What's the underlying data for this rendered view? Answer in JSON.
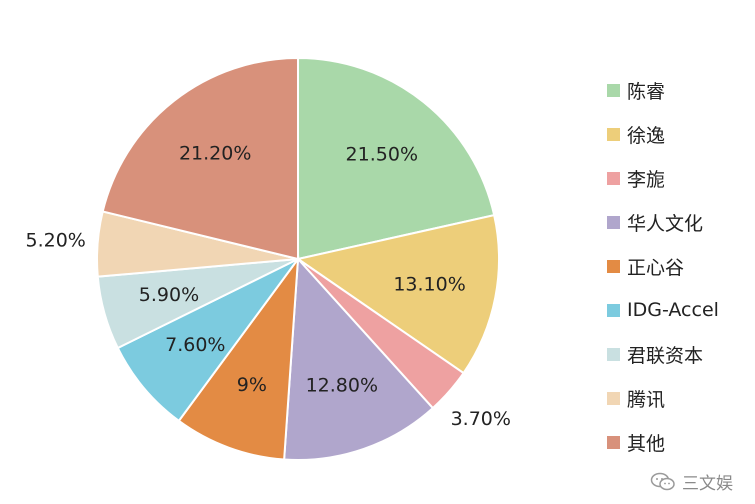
{
  "chart_data": {
    "type": "pie",
    "categories": [
      "陈睿",
      "徐逸",
      "李旎",
      "华人文化",
      "正心谷",
      "IDG-Accel",
      "君联资本",
      "腾讯",
      "其他"
    ],
    "values": [
      21.5,
      13.1,
      3.7,
      12.8,
      9,
      7.6,
      5.9,
      5.2,
      21.2
    ],
    "data_labels": [
      "21.50%",
      "13.10%",
      "3.70%",
      "12.80%",
      "9%",
      "7.60%",
      "5.90%",
      "5.20%",
      "21.20%"
    ],
    "colors": [
      "#A9D8A9",
      "#EDCE7A",
      "#EEA1A1",
      "#B0A6CC",
      "#E38B44",
      "#7CCBDF",
      "#C9E0E1",
      "#F1D6B4",
      "#D8917B"
    ],
    "title": "",
    "legend_position": "right",
    "start_angle_deg": 0,
    "direction": "clockwise"
  },
  "watermark": {
    "text": "三文娱",
    "icon": "wechat-icon"
  }
}
